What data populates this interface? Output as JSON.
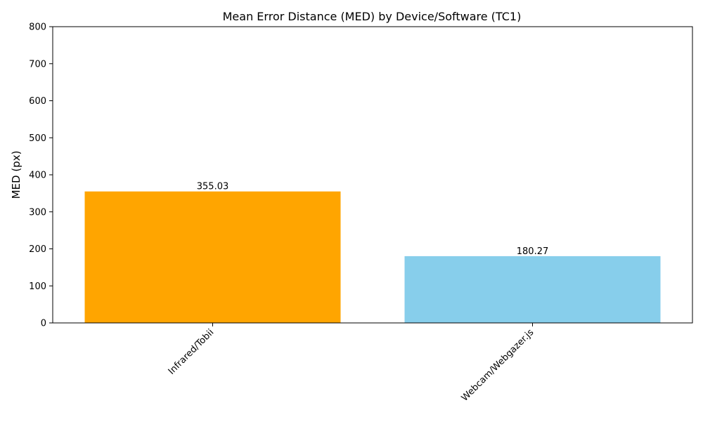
{
  "chart_data": {
    "type": "bar",
    "title": "Mean Error Distance (MED) by Device/Software (TC1)",
    "xlabel": "",
    "ylabel": "MED (px)",
    "categories": [
      "Infrared/Tobii",
      "Webcam/Webgazer.js"
    ],
    "values": [
      355.03,
      180.27
    ],
    "value_labels": [
      "355.03",
      "180.27"
    ],
    "colors": [
      "#FFA500",
      "#87CEEB"
    ],
    "ylim": [
      0,
      800
    ],
    "yticks": [
      0,
      100,
      200,
      300,
      400,
      500,
      600,
      700,
      800
    ],
    "grid": false,
    "legend": "none"
  }
}
